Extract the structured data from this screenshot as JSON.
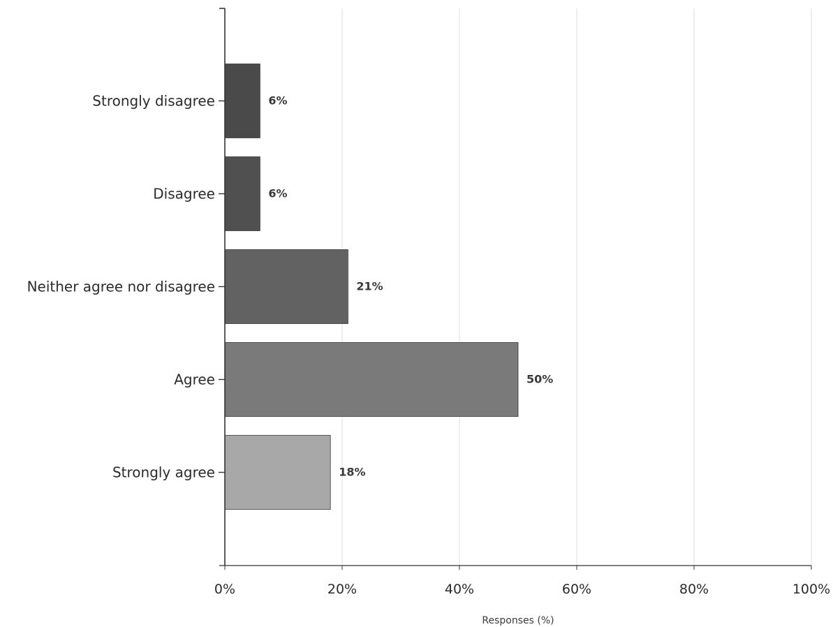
{
  "chart_data": {
    "type": "bar",
    "orientation": "horizontal",
    "categories": [
      "Strongly disagree",
      "Disagree",
      "Neither agree nor disagree",
      "Agree",
      "Strongly agree"
    ],
    "values": [
      6,
      6,
      21,
      50,
      18
    ],
    "data_labels": [
      "6%",
      "6%",
      "21%",
      "50%",
      "18%"
    ],
    "bar_colors": [
      "#4a4a4a",
      "#505050",
      "#626262",
      "#7a7a7a",
      "#a8a8a8"
    ],
    "xlabel": "Responses (%)",
    "ylabel": "",
    "xlim": [
      0,
      100
    ],
    "xticks": [
      0,
      20,
      40,
      60,
      80,
      100
    ],
    "xtick_labels": [
      "0%",
      "20%",
      "40%",
      "60%",
      "80%",
      "100%"
    ],
    "grid": "vertical",
    "legend": "none"
  }
}
